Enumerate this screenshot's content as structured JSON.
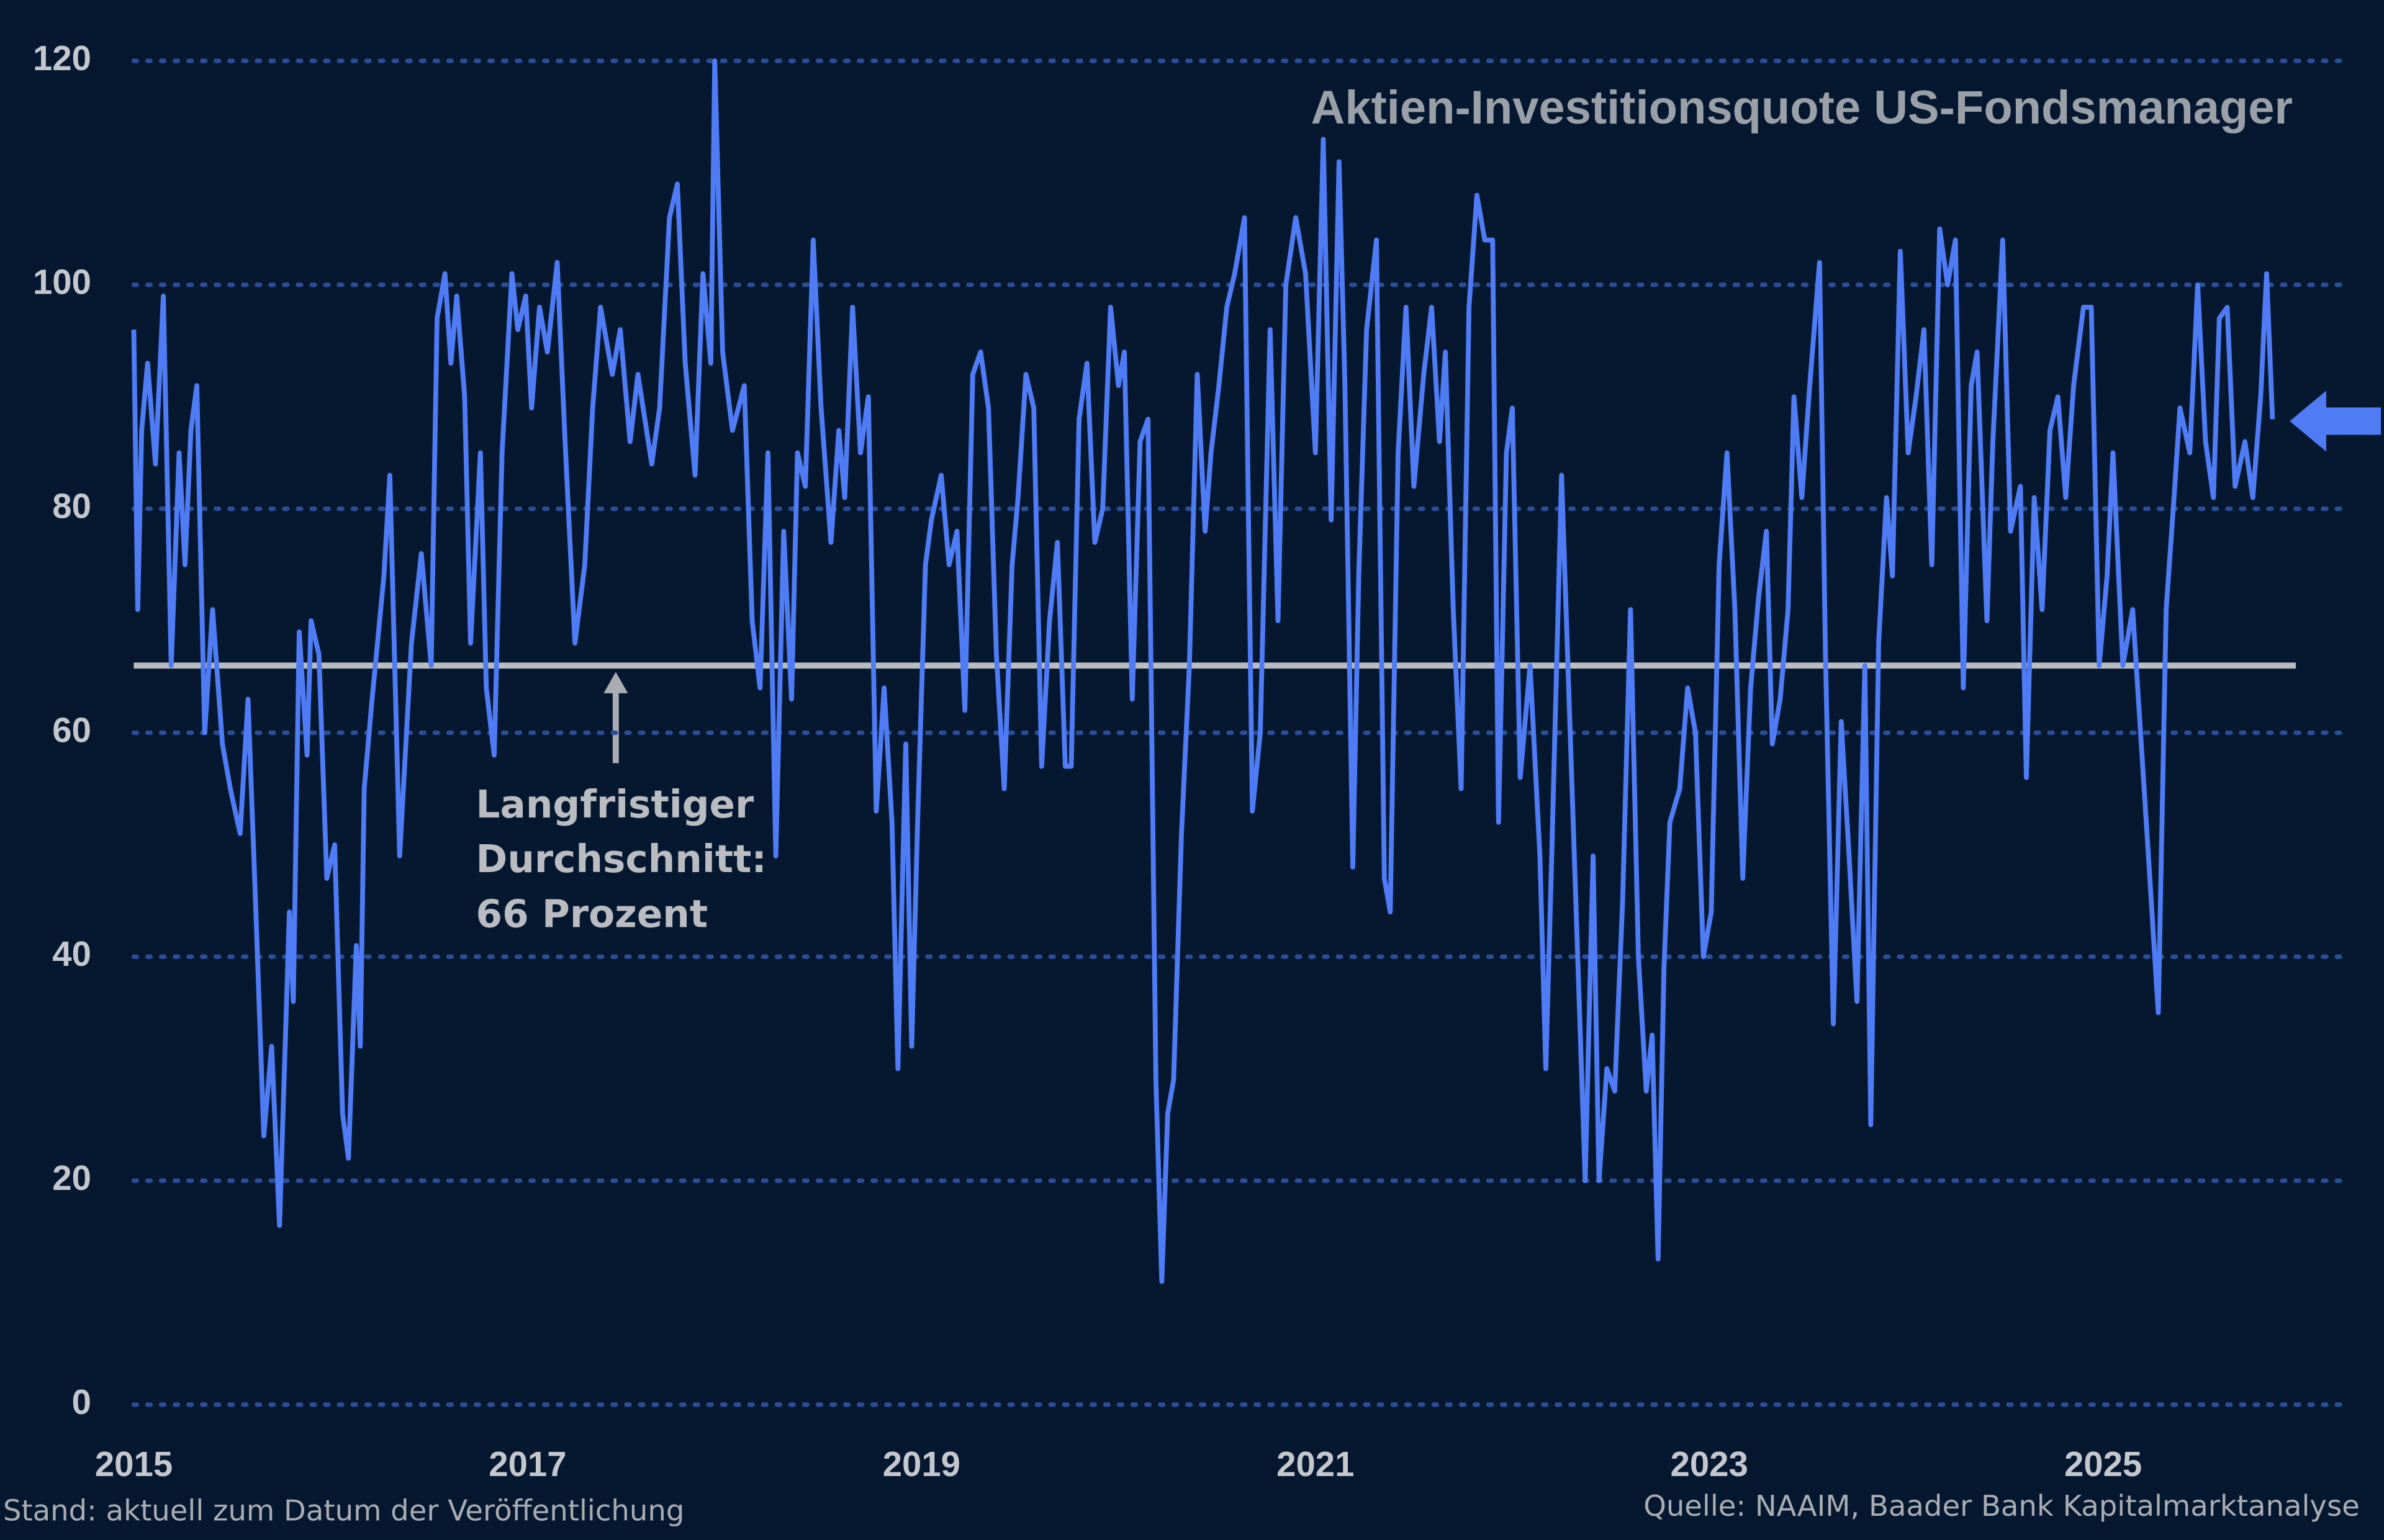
{
  "chart_data": {
    "type": "line",
    "title": "Aktien-Investitionsquote US-Fondsmanager",
    "annotation": [
      "Langfristiger",
      "Durchschnitt:",
      "66 Prozent"
    ],
    "average": 66,
    "footer_left": "Stand: aktuell zum Datum der Veröffentlichung",
    "footer_right": "Quelle: NAAIM, Baader Bank Kapitalmarktanalyse",
    "color": "#4f7cf5",
    "grid": true,
    "xlim": [
      2015,
      2026.21
    ],
    "xticks": [
      2015,
      2017,
      2019,
      2021,
      2023,
      2025
    ],
    "ylim": [
      0,
      120
    ],
    "yticks": [
      0,
      20,
      40,
      60,
      80,
      100,
      120
    ],
    "x": [
      2015.0,
      2015.02,
      2015.04,
      2015.07,
      2015.11,
      2015.15,
      2015.19,
      2015.23,
      2015.26,
      2015.29,
      2015.32,
      2015.36,
      2015.4,
      2015.45,
      2015.49,
      2015.54,
      2015.58,
      2015.62,
      2015.66,
      2015.7,
      2015.74,
      2015.79,
      2015.81,
      2015.84,
      2015.88,
      2015.9,
      2015.94,
      2015.98,
      2016.02,
      2016.06,
      2016.09,
      2016.13,
      2016.15,
      2016.17,
      2016.21,
      2016.27,
      2016.3,
      2016.35,
      2016.41,
      2016.46,
      2016.51,
      2016.54,
      2016.58,
      2016.61,
      2016.64,
      2016.68,
      2016.71,
      2016.76,
      2016.79,
      2016.83,
      2016.87,
      2016.92,
      2016.95,
      2016.99,
      2017.02,
      2017.06,
      2017.1,
      2017.15,
      2017.19,
      2017.24,
      2017.29,
      2017.33,
      2017.37,
      2017.43,
      2017.47,
      2017.52,
      2017.56,
      2017.63,
      2017.67,
      2017.72,
      2017.76,
      2017.8,
      2017.85,
      2017.89,
      2017.93,
      2017.95,
      2017.99,
      2018.04,
      2018.1,
      2018.14,
      2018.18,
      2018.22,
      2018.26,
      2018.3,
      2018.34,
      2018.37,
      2018.41,
      2018.45,
      2018.49,
      2018.54,
      2018.58,
      2018.61,
      2018.65,
      2018.69,
      2018.73,
      2018.77,
      2018.81,
      2018.85,
      2018.88,
      2018.92,
      2018.95,
      2018.98,
      2019.02,
      2019.05,
      2019.1,
      2019.14,
      2019.18,
      2019.22,
      2019.26,
      2019.3,
      2019.34,
      2019.38,
      2019.42,
      2019.46,
      2019.49,
      2019.53,
      2019.57,
      2019.61,
      2019.65,
      2019.69,
      2019.73,
      2019.76,
      2019.8,
      2019.84,
      2019.88,
      2019.92,
      2019.96,
      2020.0,
      2020.03,
      2020.07,
      2020.11,
      2020.15,
      2020.19,
      2020.22,
      2020.25,
      2020.28,
      2020.32,
      2020.36,
      2020.4,
      2020.44,
      2020.47,
      2020.51,
      2020.55,
      2020.59,
      2020.64,
      2020.68,
      2020.72,
      2020.77,
      2020.81,
      2020.85,
      2020.9,
      2020.95,
      2021.0,
      2021.04,
      2021.08,
      2021.12,
      2021.15,
      2021.19,
      2021.22,
      2021.26,
      2021.31,
      2021.35,
      2021.38,
      2021.42,
      2021.46,
      2021.5,
      2021.55,
      2021.59,
      2021.63,
      2021.66,
      2021.7,
      2021.74,
      2021.78,
      2021.82,
      2021.86,
      2021.9,
      2021.93,
      2021.97,
      2022.0,
      2022.04,
      2022.09,
      2022.14,
      2022.17,
      2022.2,
      2022.25,
      2022.29,
      2022.33,
      2022.37,
      2022.41,
      2022.44,
      2022.48,
      2022.52,
      2022.56,
      2022.6,
      2022.64,
      2022.68,
      2022.71,
      2022.74,
      2022.77,
      2022.8,
      2022.85,
      2022.89,
      2022.93,
      2022.97,
      2023.01,
      2023.05,
      2023.09,
      2023.13,
      2023.17,
      2023.21,
      2023.25,
      2023.29,
      2023.32,
      2023.36,
      2023.4,
      2023.43,
      2023.47,
      2023.51,
      2023.56,
      2023.59,
      2023.63,
      2023.67,
      2023.71,
      2023.75,
      2023.79,
      2023.82,
      2023.86,
      2023.9,
      2023.93,
      2023.97,
      2024.01,
      2024.05,
      2024.09,
      2024.13,
      2024.17,
      2024.21,
      2024.25,
      2024.29,
      2024.33,
      2024.36,
      2024.41,
      2024.44,
      2024.49,
      2024.53,
      2024.58,
      2024.61,
      2024.65,
      2024.69,
      2024.73,
      2024.77,
      2024.81,
      2024.85,
      2024.9,
      2024.94,
      2024.98,
      2025.02,
      2025.05,
      2025.1,
      2025.15,
      2025.19,
      2025.23,
      2025.28,
      2025.32,
      2025.36,
      2025.39,
      2025.44,
      2025.48,
      2025.52,
      2025.56,
      2025.59,
      2025.63,
      2025.67,
      2025.72,
      2025.76,
      2025.8,
      2025.83,
      2025.86
    ],
    "values": [
      96,
      71,
      87,
      93,
      84,
      99,
      66,
      85,
      75,
      87,
      91,
      60,
      71,
      59,
      55,
      51,
      63,
      44,
      24,
      32,
      16,
      44,
      36,
      69,
      58,
      70,
      67,
      47,
      50,
      26,
      22,
      41,
      32,
      55,
      63,
      74,
      83,
      49,
      68,
      76,
      66,
      97,
      101,
      93,
      99,
      90,
      68,
      85,
      64,
      58,
      85,
      101,
      96,
      99,
      89,
      98,
      94,
      102,
      86,
      68,
      75,
      89,
      98,
      92,
      96,
      86,
      92,
      84,
      89,
      106,
      109,
      93,
      83,
      101,
      93,
      120,
      94,
      87,
      91,
      70,
      64,
      85,
      49,
      78,
      63,
      85,
      82,
      104,
      89,
      77,
      87,
      81,
      98,
      85,
      90,
      53,
      64,
      52,
      30,
      59,
      32,
      52,
      75,
      79,
      83,
      75,
      78,
      62,
      92,
      94,
      89,
      67,
      55,
      75,
      81,
      92,
      89,
      57,
      70,
      77,
      57,
      57,
      88,
      93,
      77,
      80,
      98,
      91,
      94,
      63,
      86,
      88,
      29,
      11,
      26,
      29,
      51,
      66,
      92,
      78,
      85,
      91,
      98,
      101,
      106,
      53,
      60,
      96,
      70,
      100,
      106,
      101,
      85,
      113,
      79,
      111,
      91,
      48,
      74,
      96,
      104,
      47,
      44,
      85,
      98,
      82,
      92,
      98,
      86,
      94,
      71,
      55,
      98,
      108,
      104,
      104,
      52,
      85,
      89,
      56,
      66,
      49,
      30,
      49,
      83,
      62,
      41,
      20,
      49,
      20,
      30,
      28,
      45,
      71,
      40,
      28,
      33,
      13,
      39,
      52,
      55,
      64,
      60,
      40,
      44,
      75,
      85,
      71,
      47,
      64,
      72,
      78,
      59,
      63,
      71,
      90,
      81,
      91,
      102,
      67,
      34,
      61,
      49,
      36,
      66,
      25,
      68,
      81,
      74,
      103,
      85,
      90,
      96,
      75,
      105,
      100,
      104,
      64,
      91,
      94,
      70,
      86,
      104,
      78,
      82,
      56,
      81,
      71,
      87,
      90,
      81,
      91,
      98,
      98,
      66,
      74,
      85,
      66,
      71,
      60,
      49,
      35,
      71,
      81,
      89,
      85,
      100,
      86,
      81,
      97,
      98,
      82,
      86,
      81,
      90,
      101,
      88
    ]
  }
}
